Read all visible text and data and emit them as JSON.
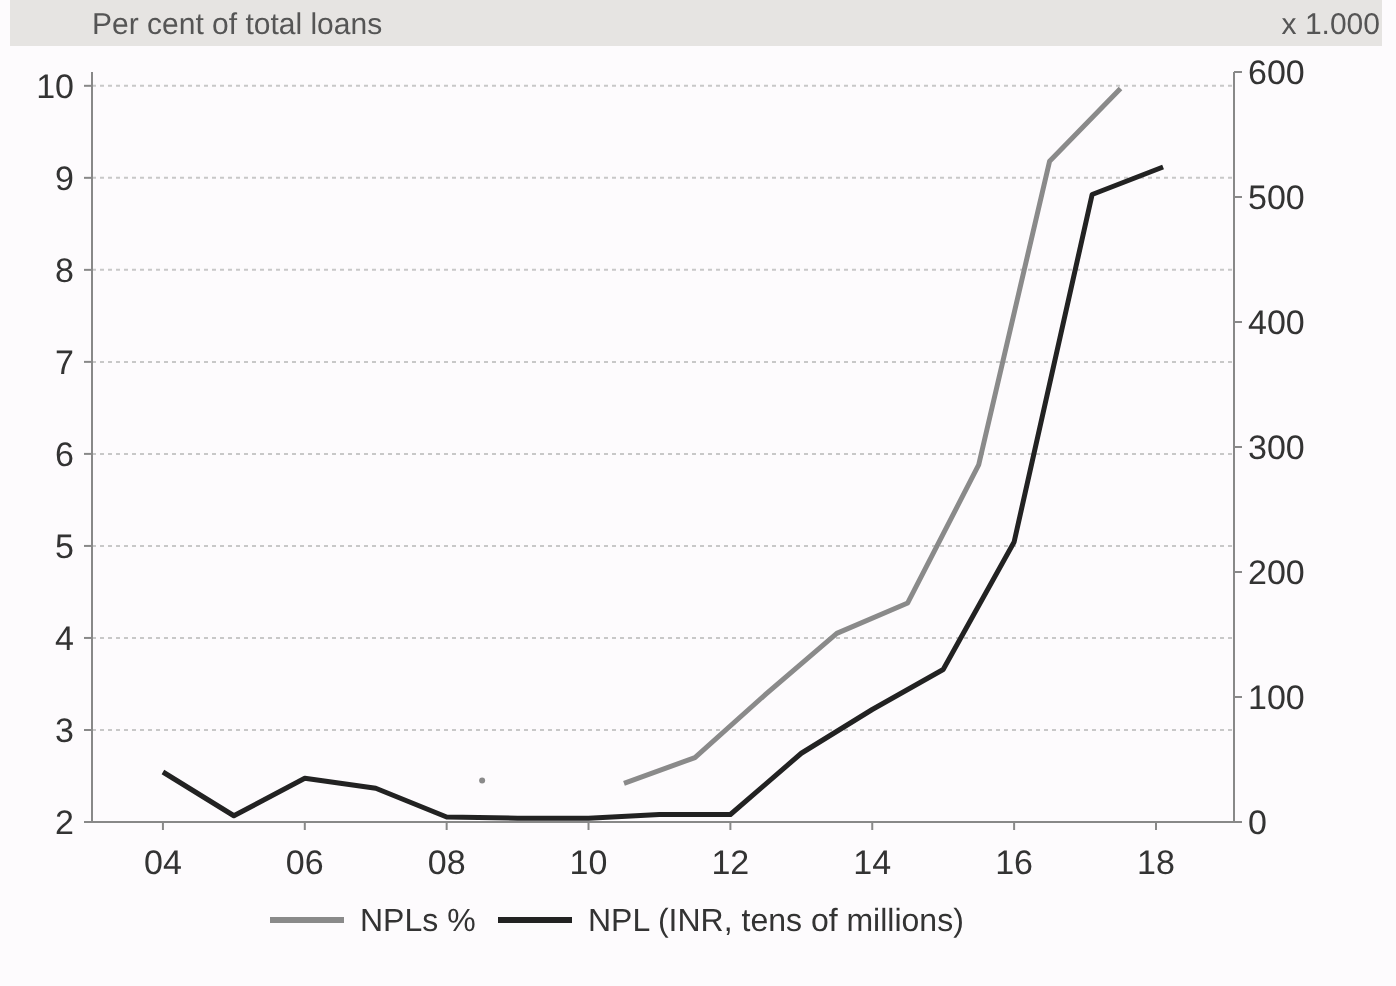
{
  "chart_data": {
    "type": "line",
    "ylabel": "Per cent of total loans",
    "y2label": "x 1.000",
    "xlim": [
      2003,
      2019.1
    ],
    "xticks": [
      {
        "value": 2004,
        "label": "04"
      },
      {
        "value": 2006,
        "label": "06"
      },
      {
        "value": 2008,
        "label": "08"
      },
      {
        "value": 2010,
        "label": "10"
      },
      {
        "value": 2012,
        "label": "12"
      },
      {
        "value": 2014,
        "label": "14"
      },
      {
        "value": 2016,
        "label": "16"
      },
      {
        "value": 2018,
        "label": "18"
      }
    ],
    "ylim": [
      2,
      10.15
    ],
    "yticks": [
      2,
      3,
      4,
      5,
      6,
      7,
      8,
      9,
      10
    ],
    "y2lim": [
      0,
      600
    ],
    "y2ticks": [
      0,
      100,
      200,
      300,
      400,
      500,
      600
    ],
    "grid": "y",
    "legend": "bottom",
    "line_style": "solid",
    "series": [
      {
        "name": "NPLs %",
        "color": "#8a8a8a",
        "x": [
          2008.5,
          2009.5,
          2010.5,
          2011.5,
          2012.5,
          2013.5,
          2014.5,
          2015.5,
          2016.5,
          2017.5
        ],
        "values": [
          2.45,
          null,
          2.42,
          2.7,
          3.39,
          4.05,
          4.38,
          5.88,
          9.18,
          9.97
        ]
      },
      {
        "name": "NPL (INR, tens of millions)",
        "color": "#222222",
        "axis": "y2",
        "x": [
          2004,
          2005,
          2006,
          2007,
          2008,
          2009,
          2010,
          2011,
          2012,
          2013,
          2014,
          2015,
          2016,
          2017.1,
          2018.1
        ],
        "values": [
          40,
          5,
          35,
          27,
          4,
          3,
          3,
          6,
          6,
          55,
          90,
          122,
          224,
          502,
          524
        ]
      }
    ]
  }
}
